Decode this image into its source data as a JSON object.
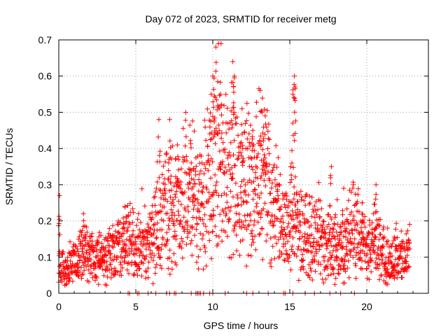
{
  "chart_data": {
    "type": "scatter",
    "title": "Day 072 of 2023, SRMTID for receiver metg",
    "xlabel": "GPS time / hours",
    "ylabel": "SRMTID / TECUs",
    "xlim": [
      0,
      24
    ],
    "ylim": [
      0,
      0.7
    ],
    "x_ticks": [
      0,
      5,
      10,
      15,
      20
    ],
    "x_tick_labels": [
      "0",
      "5",
      "10",
      "15",
      "20"
    ],
    "y_ticks": [
      0,
      0.1,
      0.2,
      0.3,
      0.4,
      0.5,
      0.6,
      0.7
    ],
    "y_tick_labels": [
      "0",
      "0.1",
      "0.2",
      "0.3",
      "0.4",
      "0.5",
      "0.6",
      "0.7"
    ],
    "grid": true,
    "marker": "plus",
    "color": "#ff0000",
    "trend": [
      [
        0.0,
        0.08
      ],
      [
        0.5,
        0.075
      ],
      [
        1.0,
        0.09
      ],
      [
        1.5,
        0.12
      ],
      [
        2.0,
        0.1
      ],
      [
        2.5,
        0.1
      ],
      [
        3.0,
        0.1
      ],
      [
        3.5,
        0.11
      ],
      [
        4.0,
        0.13
      ],
      [
        4.5,
        0.15
      ],
      [
        5.0,
        0.13
      ],
      [
        5.5,
        0.13
      ],
      [
        6.0,
        0.16
      ],
      [
        6.5,
        0.2
      ],
      [
        7.0,
        0.23
      ],
      [
        7.5,
        0.24
      ],
      [
        8.0,
        0.27
      ],
      [
        8.5,
        0.28
      ],
      [
        9.0,
        0.25
      ],
      [
        9.5,
        0.3
      ],
      [
        10.0,
        0.33
      ],
      [
        10.5,
        0.34
      ],
      [
        11.0,
        0.31
      ],
      [
        11.5,
        0.3
      ],
      [
        12.0,
        0.28
      ],
      [
        12.5,
        0.3
      ],
      [
        13.0,
        0.33
      ],
      [
        13.5,
        0.3
      ],
      [
        14.0,
        0.25
      ],
      [
        14.5,
        0.17
      ],
      [
        15.0,
        0.2
      ],
      [
        15.5,
        0.2
      ],
      [
        16.0,
        0.16
      ],
      [
        16.5,
        0.17
      ],
      [
        17.0,
        0.15
      ],
      [
        17.5,
        0.13
      ],
      [
        18.0,
        0.13
      ],
      [
        18.5,
        0.11
      ],
      [
        19.0,
        0.18
      ],
      [
        19.5,
        0.16
      ],
      [
        20.0,
        0.12
      ],
      [
        20.5,
        0.14
      ],
      [
        21.0,
        0.11
      ],
      [
        21.5,
        0.1
      ],
      [
        22.0,
        0.1
      ],
      [
        22.5,
        0.09
      ],
      [
        22.8,
        0.11
      ]
    ],
    "peaks": [
      [
        0.05,
        0.27
      ],
      [
        1.6,
        0.22
      ],
      [
        4.3,
        0.24
      ],
      [
        6.5,
        0.48
      ],
      [
        7.2,
        0.48
      ],
      [
        7.7,
        0.41
      ],
      [
        8.6,
        0.36
      ],
      [
        9.9,
        0.55
      ],
      [
        10.0,
        0.6
      ],
      [
        10.2,
        0.68
      ],
      [
        10.5,
        0.55
      ],
      [
        11.3,
        0.64
      ],
      [
        11.4,
        0.6
      ],
      [
        11.9,
        0.51
      ],
      [
        12.6,
        0.45
      ],
      [
        13.2,
        0.5
      ],
      [
        13.4,
        0.49
      ],
      [
        15.3,
        0.6
      ],
      [
        15.35,
        0.57
      ],
      [
        15.2,
        0.47
      ],
      [
        17.7,
        0.35
      ],
      [
        18.5,
        0.29
      ],
      [
        19.7,
        0.25
      ],
      [
        20.6,
        0.3
      ]
    ],
    "dropout_hours": [
      4.5,
      4.6,
      5.1,
      5.2,
      5.8,
      6.3,
      7.0,
      7.2,
      7.5,
      7.6,
      8.6,
      8.9,
      9.0,
      9.1,
      9.2,
      9.4,
      9.8,
      10.0,
      10.8,
      12.2,
      12.6,
      13.6,
      14.6,
      14.7,
      15.2,
      16.0,
      16.6,
      17.6,
      18.3,
      19.2
    ]
  }
}
